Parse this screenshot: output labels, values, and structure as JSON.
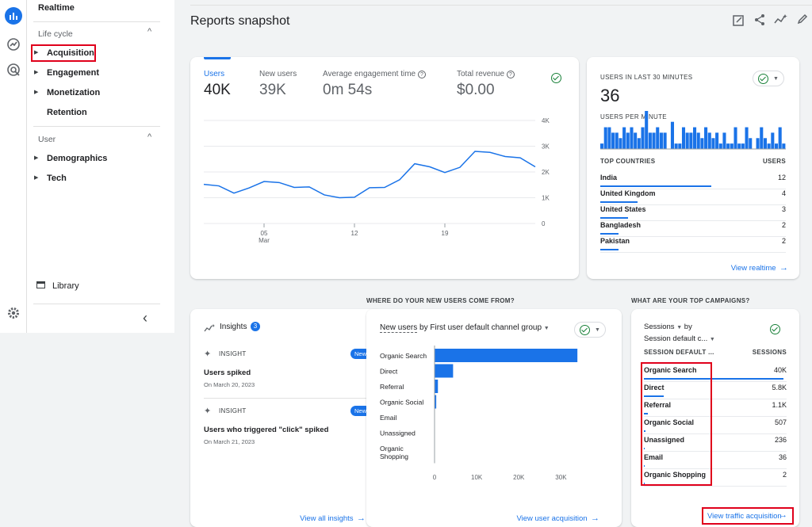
{
  "rail": {
    "icons": [
      "reports-icon",
      "explore-icon",
      "advertising-icon",
      "settings-icon"
    ]
  },
  "sidebar": {
    "realtime": "Realtime",
    "lifecycle_label": "Life cycle",
    "items_lifecycle": [
      "Acquisition",
      "Engagement",
      "Monetization",
      "Retention"
    ],
    "user_label": "User",
    "items_user": [
      "Demographics",
      "Tech"
    ],
    "library": "Library",
    "collapse_glyph": "‹"
  },
  "header": {
    "title": "Reports snapshot"
  },
  "metrics": {
    "users_label": "Users",
    "users_value": "40K",
    "new_users_label": "New users",
    "new_users_value": "39K",
    "engagement_label": "Average engagement time",
    "engagement_value": "0m 54s",
    "revenue_label": "Total revenue",
    "revenue_value": "$0.00"
  },
  "chart_data": [
    {
      "type": "line",
      "title": "Users",
      "x_labels": [
        "05",
        "12",
        "19"
      ],
      "x_sublabel": "Mar",
      "y_ticks": [
        "4K",
        "3K",
        "2K",
        "1K",
        "0"
      ],
      "ylim": [
        0,
        4000
      ],
      "values": [
        1520,
        1460,
        1180,
        1380,
        1630,
        1590,
        1400,
        1420,
        1110,
        1000,
        1020,
        1390,
        1400,
        1700,
        2320,
        2200,
        1980,
        2180,
        2800,
        2760,
        2600,
        2550,
        2200
      ]
    },
    {
      "type": "bar",
      "title": "Users per minute",
      "values": [
        1,
        4,
        4,
        3,
        3,
        2,
        4,
        3,
        4,
        3,
        2,
        4,
        7,
        3,
        3,
        4,
        3,
        3,
        0,
        5,
        1,
        1,
        4,
        3,
        3,
        4,
        3,
        2,
        4,
        3,
        2,
        3,
        1,
        3,
        1,
        1,
        4,
        1,
        1,
        4,
        2,
        0,
        2,
        4,
        2,
        1,
        3,
        1,
        4,
        1
      ]
    },
    {
      "type": "bar",
      "title": "New users by First user default channel group",
      "categories": [
        "Organic Search",
        "Direct",
        "Referral",
        "Organic Social",
        "Email",
        "Unassigned",
        "Organic Shopping"
      ],
      "values": [
        33900,
        4400,
        800,
        400,
        30,
        20,
        5
      ],
      "x_ticks": [
        "0",
        "10K",
        "20K",
        "30K"
      ],
      "xlim": [
        0,
        35000
      ]
    }
  ],
  "realtime": {
    "title": "USERS IN LAST 30 MINUTES",
    "value": "36",
    "per_minute_label": "USERS PER MINUTE",
    "countries_header": "TOP COUNTRIES",
    "users_header": "USERS",
    "countries": [
      {
        "name": "India",
        "value": "12",
        "fraction": 0.6
      },
      {
        "name": "United Kingdom",
        "value": "4",
        "fraction": 0.2
      },
      {
        "name": "United States",
        "value": "3",
        "fraction": 0.15
      },
      {
        "name": "Bangladesh",
        "value": "2",
        "fraction": 0.1
      },
      {
        "name": "Pakistan",
        "value": "2",
        "fraction": 0.1
      }
    ],
    "link": "View realtime"
  },
  "insights": {
    "title": "Insights",
    "count": "3",
    "cards": [
      {
        "tag": "INSIGHT",
        "badge": "New",
        "headline": "Users spiked",
        "date": "On March 20, 2023"
      },
      {
        "tag": "INSIGHT",
        "badge": "New",
        "headline": "Users who triggered \"click\" spiked",
        "date": "On March 21, 2023"
      }
    ],
    "link": "View all insights"
  },
  "acquisition": {
    "section_title": "WHERE DO YOUR NEW USERS COME FROM?",
    "dropdown_metric": "New users",
    "dropdown_rest": "by First user default channel group",
    "link": "View user acquisition"
  },
  "campaigns": {
    "section_title": "WHAT ARE YOUR TOP CAMPAIGNS?",
    "dim1": "Sessions",
    "dim_by": "by",
    "dim2": "Session default c...",
    "col1": "SESSION DEFAULT ...",
    "col2": "SESSIONS",
    "rows": [
      {
        "name": "Organic Search",
        "value": "40K",
        "fraction": 0.98
      },
      {
        "name": "Direct",
        "value": "5.8K",
        "fraction": 0.14
      },
      {
        "name": "Referral",
        "value": "1.1K",
        "fraction": 0.03
      },
      {
        "name": "Organic Social",
        "value": "507",
        "fraction": 0.012
      },
      {
        "name": "Unassigned",
        "value": "236",
        "fraction": 0.006
      },
      {
        "name": "Email",
        "value": "36",
        "fraction": 0.001
      },
      {
        "name": "Organic Shopping",
        "value": "2",
        "fraction": 0.0005
      }
    ],
    "link": "View traffic acquisition"
  },
  "colors": {
    "accent": "#1a73e8",
    "highlight": "#e0001b"
  }
}
